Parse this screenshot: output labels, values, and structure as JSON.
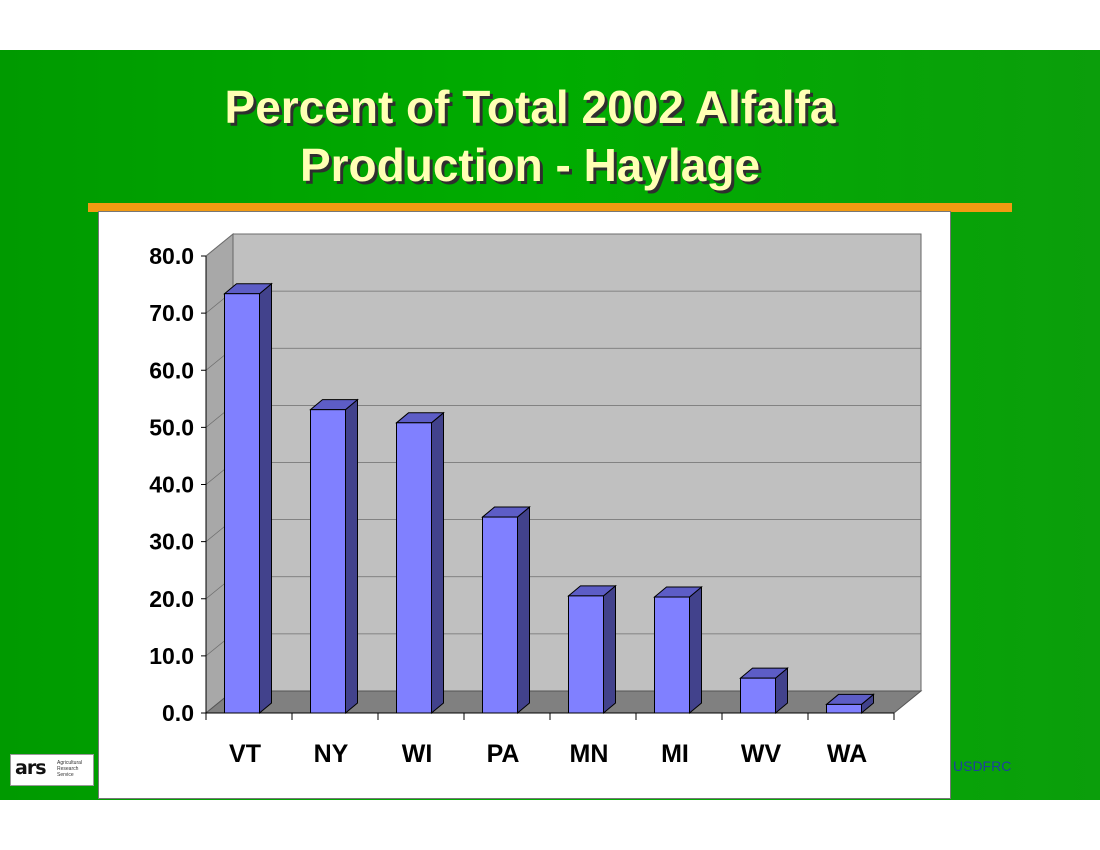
{
  "slide": {
    "title_line1": "Percent of Total 2002 Alfalfa",
    "title_line2": "Production - Haylage",
    "footer_text": "USDFRC",
    "logo_mark": "ars",
    "logo_lines": [
      "Agricultural",
      "Research",
      "Service"
    ],
    "colors": {
      "background": "#00a800",
      "title": "#ffffb4",
      "rule": "#f19a12",
      "bar_front": "#8080ff",
      "bar_side": "#42428c",
      "bar_top": "#5d5dc6",
      "plot_wall": "#c0c0c0",
      "plot_floor": "#808080",
      "footer": "#1e3fa0"
    }
  },
  "chart_data": {
    "type": "bar",
    "categories": [
      "VT",
      "NY",
      "WI",
      "PA",
      "MN",
      "MI",
      "WV",
      "WA"
    ],
    "values": [
      73.4,
      53.1,
      50.8,
      34.3,
      20.5,
      20.3,
      6.1,
      1.5
    ],
    "ylim": [
      0,
      80
    ],
    "yticks": [
      "0.0",
      "10.0",
      "20.0",
      "30.0",
      "40.0",
      "50.0",
      "60.0",
      "70.0",
      "80.0"
    ],
    "grid": true,
    "style": "3d-column"
  }
}
